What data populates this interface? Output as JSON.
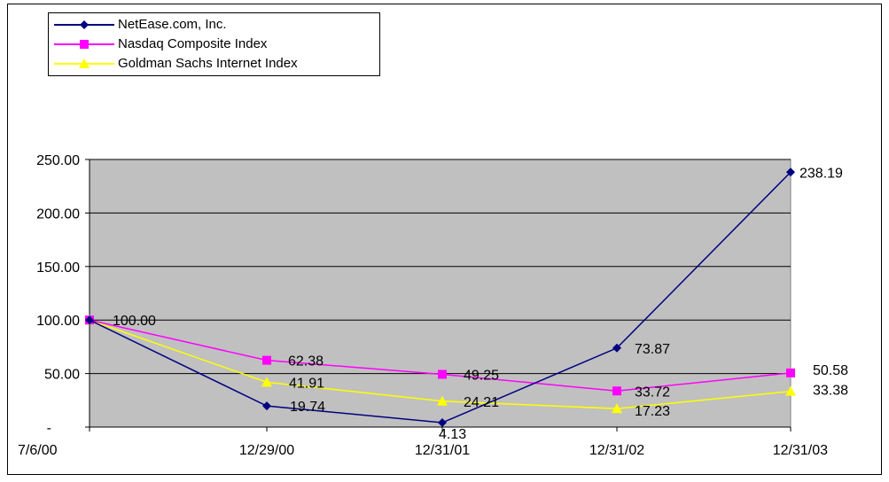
{
  "chart_data": {
    "type": "line",
    "categories": [
      "7/6/00",
      "12/29/00",
      "12/31/01",
      "12/31/02",
      "12/31/03"
    ],
    "series": [
      {
        "name": "NetEase.com, Inc.",
        "values": [
          100.0,
          19.74,
          4.13,
          73.87,
          238.19
        ],
        "color": "#000080",
        "marker": "diamond"
      },
      {
        "name": "Nasdaq Composite Index",
        "values": [
          100.0,
          62.38,
          49.25,
          33.72,
          50.58
        ],
        "color": "#FF00FF",
        "marker": "square"
      },
      {
        "name": "Goldman Sachs Internet Index",
        "values": [
          100.0,
          41.91,
          24.21,
          17.23,
          33.38
        ],
        "color": "#FFFF00",
        "marker": "triangle"
      }
    ],
    "data_labels": [
      {
        "series": 0,
        "index": 0,
        "text": "100.00"
      },
      {
        "series": 0,
        "index": 1,
        "text": "19.74"
      },
      {
        "series": 0,
        "index": 2,
        "text": "4.13"
      },
      {
        "series": 0,
        "index": 3,
        "text": "73.87"
      },
      {
        "series": 0,
        "index": 4,
        "text": "238.19"
      },
      {
        "series": 1,
        "index": 1,
        "text": "62.38"
      },
      {
        "series": 1,
        "index": 2,
        "text": "49.25"
      },
      {
        "series": 1,
        "index": 3,
        "text": "33.72"
      },
      {
        "series": 1,
        "index": 4,
        "text": "50.58"
      },
      {
        "series": 2,
        "index": 1,
        "text": "41.91"
      },
      {
        "series": 2,
        "index": 2,
        "text": "24.21"
      },
      {
        "series": 2,
        "index": 3,
        "text": "17.23"
      },
      {
        "series": 2,
        "index": 4,
        "text": "33.38"
      }
    ],
    "y_ticks": [
      "250.00",
      "200.00",
      "150.00",
      "100.00",
      "50.00",
      "-"
    ],
    "ylim": [
      0,
      250
    ],
    "grid": true,
    "legend_position": "top-left",
    "plot_background": "#C0C0C0"
  }
}
